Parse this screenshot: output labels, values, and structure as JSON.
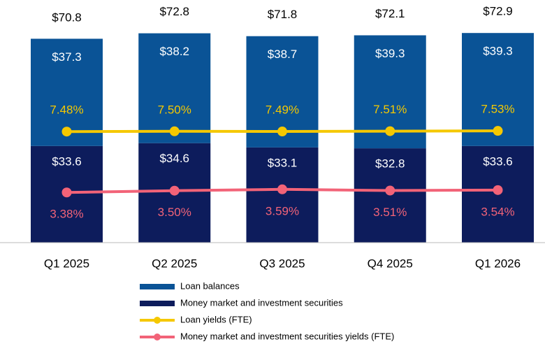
{
  "chart_data": {
    "type": "bar",
    "stacked": true,
    "categories": [
      "Q1 2025",
      "Q2 2025",
      "Q3 2025",
      "Q4 2025",
      "Q1 2026"
    ],
    "series": [
      {
        "name": "Loan balances",
        "type": "bar",
        "color": "#0a5396",
        "values": [
          37.3,
          38.2,
          38.7,
          39.3,
          39.3
        ],
        "value_labels": [
          "$37.3",
          "$38.2",
          "$38.7",
          "$39.3",
          "$39.3"
        ]
      },
      {
        "name": "Money market and investment securities",
        "type": "bar",
        "color": "#0d1c5c",
        "values": [
          33.6,
          34.6,
          33.1,
          32.8,
          33.6
        ],
        "value_labels": [
          "$33.6",
          "$34.6",
          "$33.1",
          "$32.8",
          "$33.6"
        ]
      },
      {
        "name": "Loan yields (FTE)",
        "type": "line",
        "axis": "y2",
        "color": "#f5c800",
        "values": [
          7.48,
          7.5,
          7.49,
          7.51,
          7.53
        ],
        "value_labels": [
          "7.48%",
          "7.50%",
          "7.49%",
          "7.51%",
          "7.53%"
        ]
      },
      {
        "name": "Money market and investment securities yields (FTE)",
        "type": "line",
        "axis": "y2",
        "color": "#f26378",
        "values": [
          3.38,
          3.5,
          3.59,
          3.51,
          3.54
        ],
        "value_labels": [
          "3.38%",
          "3.50%",
          "3.59%",
          "3.51%",
          "3.54%"
        ]
      }
    ],
    "totals": {
      "values": [
        70.8,
        72.8,
        71.8,
        72.1,
        72.9
      ],
      "value_labels": [
        "$70.8",
        "$72.8",
        "$71.8",
        "$72.1",
        "$72.9"
      ]
    },
    "ylim": [
      0,
      80
    ],
    "y2lim": [
      0,
      15.5
    ],
    "legend": "bottom"
  }
}
